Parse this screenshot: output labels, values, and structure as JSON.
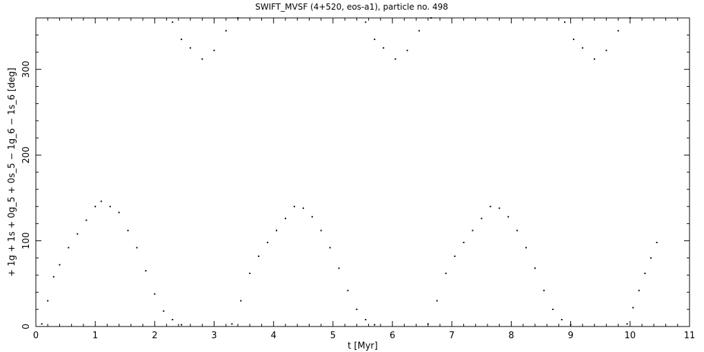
{
  "chart_data": {
    "type": "scatter",
    "title": "SWIFT_MVSF (4+520, eos-a1), particle no. 498",
    "xlabel": "t [Myr]",
    "ylabel": "+ 1g + 1s + 0g_5 + 0s_5 − 1g_6 − 1s_6 [deg]",
    "xlim": [
      0,
      11
    ],
    "ylim": [
      0,
      360
    ],
    "x_ticks": [
      "0",
      "1",
      "2",
      "3",
      "4",
      "5",
      "6",
      "7",
      "8",
      "9",
      "10",
      "11"
    ],
    "y_ticks": [
      "0",
      "100",
      "200",
      "300"
    ],
    "grid": false,
    "legend": "none",
    "marker_color": "#000000",
    "series": [
      {
        "points": [
          [
            0.1,
            3
          ],
          [
            0.2,
            30
          ],
          [
            0.3,
            58
          ],
          [
            0.4,
            72
          ],
          [
            0.55,
            92
          ],
          [
            0.7,
            108
          ],
          [
            0.85,
            124
          ],
          [
            1.0,
            140
          ],
          [
            1.1,
            146
          ],
          [
            1.25,
            140
          ],
          [
            1.4,
            133
          ],
          [
            1.55,
            112
          ],
          [
            1.7,
            92
          ],
          [
            1.85,
            65
          ],
          [
            2.0,
            38
          ],
          [
            2.15,
            18
          ],
          [
            2.3,
            8
          ],
          [
            2.45,
            2
          ],
          [
            2.3,
            355
          ],
          [
            2.45,
            335
          ],
          [
            2.6,
            325
          ],
          [
            2.8,
            312
          ],
          [
            3.0,
            322
          ],
          [
            3.2,
            345
          ],
          [
            3.4,
            360
          ],
          [
            3.3,
            3
          ],
          [
            3.45,
            30
          ],
          [
            3.6,
            62
          ],
          [
            3.75,
            82
          ],
          [
            3.9,
            98
          ],
          [
            4.05,
            112
          ],
          [
            4.2,
            126
          ],
          [
            4.35,
            140
          ],
          [
            4.5,
            138
          ],
          [
            4.65,
            128
          ],
          [
            4.8,
            112
          ],
          [
            4.95,
            92
          ],
          [
            5.1,
            68
          ],
          [
            5.25,
            42
          ],
          [
            5.4,
            20
          ],
          [
            5.55,
            8
          ],
          [
            5.7,
            2
          ],
          [
            5.55,
            355
          ],
          [
            5.7,
            335
          ],
          [
            5.85,
            325
          ],
          [
            6.05,
            312
          ],
          [
            6.25,
            322
          ],
          [
            6.45,
            345
          ],
          [
            6.65,
            360
          ],
          [
            6.6,
            3
          ],
          [
            6.75,
            30
          ],
          [
            6.9,
            62
          ],
          [
            7.05,
            82
          ],
          [
            7.2,
            98
          ],
          [
            7.35,
            112
          ],
          [
            7.5,
            126
          ],
          [
            7.65,
            140
          ],
          [
            7.8,
            138
          ],
          [
            7.95,
            128
          ],
          [
            8.1,
            112
          ],
          [
            8.25,
            92
          ],
          [
            8.4,
            68
          ],
          [
            8.55,
            42
          ],
          [
            8.7,
            20
          ],
          [
            8.85,
            8
          ],
          [
            9.0,
            2
          ],
          [
            8.9,
            355
          ],
          [
            9.05,
            335
          ],
          [
            9.2,
            325
          ],
          [
            9.4,
            312
          ],
          [
            9.6,
            322
          ],
          [
            9.8,
            345
          ],
          [
            10.0,
            360
          ],
          [
            9.95,
            3
          ],
          [
            10.05,
            22
          ],
          [
            10.15,
            42
          ],
          [
            10.25,
            62
          ],
          [
            10.35,
            80
          ],
          [
            10.45,
            98
          ]
        ]
      }
    ]
  }
}
